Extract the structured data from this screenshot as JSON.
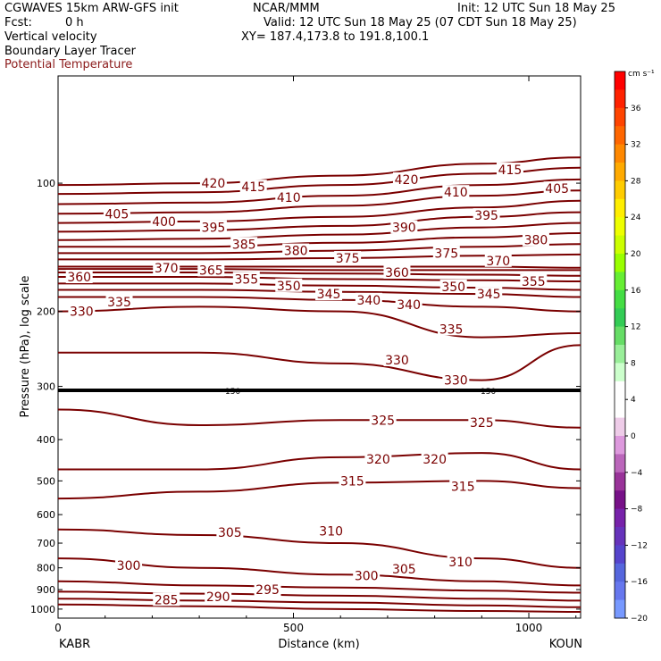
{
  "header": {
    "model": "CGWAVES 15km ARW-GFS init",
    "org": "NCAR/MMM",
    "init": "Init: 12 UTC Sun 18 May 25",
    "fcst_label": "Fcst:",
    "fcst_value": "0 h",
    "valid": "Valid: 12 UTC Sun 18 May 25 (07 CDT Sun 18 May 25)",
    "field1": "Vertical velocity",
    "xy": "XY= 187.4,173.8 to 191.8,100.1",
    "field2": "Boundary Layer Tracer",
    "field3": "Potential Temperature",
    "field3_color": "#8b1a1a"
  },
  "chart_data": {
    "type": "line",
    "description_kind": "vertical cross-section with potential temperature contours",
    "xlabel": "Distance (km)",
    "ylabel": "Pressure (hPa), log scale",
    "x_ticks": [
      "0",
      "500",
      "1000"
    ],
    "x_tick_values": [
      0,
      500,
      1000
    ],
    "xlim": [
      0,
      1110
    ],
    "y_scale": "log",
    "ylim": [
      1050,
      56
    ],
    "y_ticks": [
      100,
      200,
      300,
      400,
      500,
      600,
      700,
      800,
      900,
      1000
    ],
    "y_tick_labels": [
      "100",
      "200",
      "300",
      "400",
      "500",
      "600",
      "700",
      "800",
      "900",
      "1000"
    ],
    "left_endpoint": "KABR",
    "right_endpoint": "KOUN",
    "line_color": "#7a0000",
    "tropopause_label": "150",
    "series": [
      {
        "name": "285",
        "x": [
          0,
          300,
          600,
          900,
          1110
        ],
        "y": [
          975,
          985,
          1000,
          1010,
          1015
        ]
      },
      {
        "name": "290",
        "x": [
          0,
          300,
          600,
          900,
          1110
        ],
        "y": [
          945,
          955,
          965,
          980,
          990
        ]
      },
      {
        "name": "295",
        "x": [
          0,
          300,
          600,
          900,
          1110
        ],
        "y": [
          910,
          920,
          930,
          945,
          955
        ]
      },
      {
        "name": "300",
        "x": [
          0,
          300,
          600,
          900,
          1110
        ],
        "y": [
          860,
          880,
          890,
          905,
          915
        ]
      },
      {
        "name": "305",
        "x": [
          0,
          300,
          600,
          900,
          1110
        ],
        "y": [
          760,
          800,
          830,
          860,
          880
        ]
      },
      {
        "name": "310",
        "x": [
          0,
          300,
          600,
          900,
          1110
        ],
        "y": [
          650,
          670,
          700,
          760,
          800
        ]
      },
      {
        "name": "315",
        "x": [
          0,
          300,
          600,
          900,
          1110
        ],
        "y": [
          550,
          530,
          505,
          500,
          520
        ]
      },
      {
        "name": "320",
        "x": [
          0,
          300,
          600,
          900,
          1110
        ],
        "y": [
          470,
          470,
          440,
          430,
          470
        ]
      },
      {
        "name": "325",
        "x": [
          0,
          300,
          600,
          900,
          1110
        ],
        "y": [
          340,
          370,
          360,
          360,
          375
        ]
      },
      {
        "name": "330",
        "x": [
          0,
          300,
          600,
          900,
          1110
        ],
        "y": [
          250,
          250,
          265,
          290,
          240
        ]
      },
      {
        "name": "335",
        "x": [
          0,
          300,
          600,
          900,
          1110
        ],
        "y": [
          200,
          195,
          200,
          230,
          225
        ]
      },
      {
        "name": "340",
        "x": [
          0,
          300,
          600,
          900,
          1110
        ],
        "y": [
          185,
          185,
          188,
          195,
          200
        ]
      },
      {
        "name": "345",
        "x": [
          0,
          300,
          600,
          900,
          1110
        ],
        "y": [
          178,
          178,
          180,
          182,
          185
        ]
      },
      {
        "name": "350",
        "x": [
          0,
          300,
          600,
          900,
          1110
        ],
        "y": [
          172,
          172,
          174,
          176,
          178
        ]
      },
      {
        "name": "355",
        "x": [
          0,
          300,
          600,
          900,
          1110
        ],
        "y": [
          166,
          166,
          168,
          169,
          170
        ]
      },
      {
        "name": "360",
        "x": [
          0,
          300,
          600,
          900,
          1110
        ],
        "y": [
          162,
          162,
          163,
          164,
          165
        ]
      },
      {
        "name": "365",
        "x": [
          0,
          300,
          600,
          900,
          1110
        ],
        "y": [
          159,
          159,
          160,
          160,
          160
        ]
      },
      {
        "name": "370",
        "x": [
          0,
          300,
          600,
          900,
          1110
        ],
        "y": [
          157,
          157,
          157,
          157,
          158
        ]
      },
      {
        "name": "375",
        "x": [
          0,
          300,
          600,
          900,
          1110
        ],
        "y": [
          151,
          151,
          150,
          148,
          147
        ]
      },
      {
        "name": "380",
        "x": [
          0,
          300,
          600,
          900,
          1110
        ],
        "y": [
          146,
          146,
          144,
          141,
          139
        ]
      },
      {
        "name": "385",
        "x": [
          0,
          300,
          600,
          900,
          1110
        ],
        "y": [
          141,
          141,
          138,
          134,
          131
        ]
      },
      {
        "name": "390",
        "x": [
          0,
          300,
          600,
          900,
          1110
        ],
        "y": [
          136,
          135,
          132,
          127,
          124
        ]
      },
      {
        "name": "395",
        "x": [
          0,
          300,
          600,
          900,
          1110
        ],
        "y": [
          130,
          129,
          126,
          120,
          117
        ]
      },
      {
        "name": "400",
        "x": [
          0,
          300,
          600,
          900,
          1110
        ],
        "y": [
          124,
          123,
          120,
          114,
          110
        ]
      },
      {
        "name": "405",
        "x": [
          0,
          300,
          600,
          900,
          1110
        ],
        "y": [
          118,
          117,
          113,
          107,
          104
        ]
      },
      {
        "name": "410",
        "x": [
          0,
          300,
          600,
          900,
          1110
        ],
        "y": [
          112,
          111,
          107,
          101,
          98
        ]
      },
      {
        "name": "415",
        "x": [
          0,
          300,
          600,
          900,
          1110
        ],
        "y": [
          106,
          105,
          101,
          95,
          92
        ]
      },
      {
        "name": "420",
        "x": [
          0,
          300,
          600,
          900,
          1110
        ],
        "y": [
          101,
          100,
          96,
          90,
          87
        ]
      }
    ],
    "contour_labels": [
      {
        "text": "420",
        "x": 330,
        "y": 100
      },
      {
        "text": "415",
        "x": 415,
        "y": 102
      },
      {
        "text": "410",
        "x": 490,
        "y": 108
      },
      {
        "text": "420",
        "x": 740,
        "y": 98
      },
      {
        "text": "410",
        "x": 845,
        "y": 105
      },
      {
        "text": "415",
        "x": 960,
        "y": 93
      },
      {
        "text": "405",
        "x": 1060,
        "y": 103
      },
      {
        "text": "405",
        "x": 125,
        "y": 118
      },
      {
        "text": "400",
        "x": 225,
        "y": 123
      },
      {
        "text": "395",
        "x": 330,
        "y": 127
      },
      {
        "text": "390",
        "x": 735,
        "y": 127
      },
      {
        "text": "395",
        "x": 910,
        "y": 119
      },
      {
        "text": "385",
        "x": 395,
        "y": 139
      },
      {
        "text": "380",
        "x": 505,
        "y": 144
      },
      {
        "text": "375",
        "x": 615,
        "y": 150
      },
      {
        "text": "380",
        "x": 1015,
        "y": 136
      },
      {
        "text": "375",
        "x": 825,
        "y": 146
      },
      {
        "text": "370",
        "x": 935,
        "y": 152
      },
      {
        "text": "370",
        "x": 230,
        "y": 158
      },
      {
        "text": "365",
        "x": 325,
        "y": 160
      },
      {
        "text": "360",
        "x": 720,
        "y": 162
      },
      {
        "text": "360",
        "x": 45,
        "y": 166
      },
      {
        "text": "355",
        "x": 400,
        "y": 168
      },
      {
        "text": "350",
        "x": 490,
        "y": 174
      },
      {
        "text": "345",
        "x": 575,
        "y": 182
      },
      {
        "text": "350",
        "x": 840,
        "y": 175
      },
      {
        "text": "355",
        "x": 1010,
        "y": 170
      },
      {
        "text": "345",
        "x": 915,
        "y": 182
      },
      {
        "text": "335",
        "x": 130,
        "y": 190
      },
      {
        "text": "340",
        "x": 660,
        "y": 188
      },
      {
        "text": "340",
        "x": 745,
        "y": 193
      },
      {
        "text": "330",
        "x": 50,
        "y": 200
      },
      {
        "text": "335",
        "x": 835,
        "y": 220
      },
      {
        "text": "330",
        "x": 720,
        "y": 260
      },
      {
        "text": "330",
        "x": 845,
        "y": 290
      },
      {
        "text": "325",
        "x": 690,
        "y": 360
      },
      {
        "text": "325",
        "x": 900,
        "y": 365
      },
      {
        "text": "320",
        "x": 680,
        "y": 445
      },
      {
        "text": "320",
        "x": 800,
        "y": 445
      },
      {
        "text": "315",
        "x": 625,
        "y": 500
      },
      {
        "text": "315",
        "x": 860,
        "y": 515
      },
      {
        "text": "310",
        "x": 580,
        "y": 655
      },
      {
        "text": "305",
        "x": 365,
        "y": 660
      },
      {
        "text": "310",
        "x": 855,
        "y": 775
      },
      {
        "text": "300",
        "x": 150,
        "y": 790
      },
      {
        "text": "305",
        "x": 735,
        "y": 805
      },
      {
        "text": "300",
        "x": 655,
        "y": 835
      },
      {
        "text": "295",
        "x": 445,
        "y": 900
      },
      {
        "text": "290",
        "x": 340,
        "y": 935
      },
      {
        "text": "285",
        "x": 230,
        "y": 950
      }
    ],
    "colorbar": {
      "unit": "cm s⁻¹",
      "labels": [
        "36",
        "32",
        "28",
        "24",
        "20",
        "16",
        "12",
        "8",
        "4",
        "0",
        "−4",
        "−8",
        "−12",
        "−16",
        "−20"
      ],
      "colors": [
        "#ff0000",
        "#ff2200",
        "#ff4400",
        "#ff6600",
        "#ff8800",
        "#ffaa00",
        "#ffcc00",
        "#ffee00",
        "#eeff00",
        "#ccff00",
        "#99ff00",
        "#66ee33",
        "#44dd44",
        "#33cc55",
        "#66dd66",
        "#99ee99",
        "#ccffcc",
        "#ffffff",
        "#ffffff",
        "#eecce8",
        "#dd99dd",
        "#bb66bb",
        "#993399",
        "#771188",
        "#7722aa",
        "#6633bb",
        "#5544cc",
        "#5566dd",
        "#6677ee",
        "#7799ff"
      ]
    }
  }
}
